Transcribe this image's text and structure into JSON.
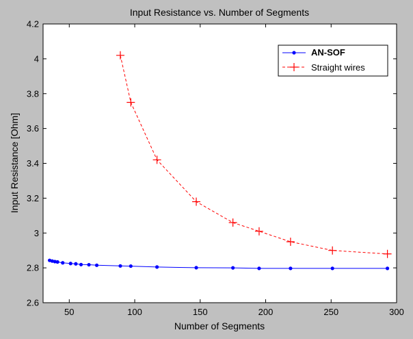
{
  "chart_data": {
    "type": "line",
    "title": "Input Resistance vs. Number of Segments",
    "xlabel": "Number of Segments",
    "ylabel": "Input Resistance [Ohm]",
    "xlim": [
      30,
      300
    ],
    "ylim": [
      2.6,
      4.2
    ],
    "xticks": [
      50,
      100,
      150,
      200,
      250,
      300
    ],
    "yticks": [
      2.6,
      2.8,
      3.0,
      3.2,
      3.4,
      3.6,
      3.8,
      4.0,
      4.2
    ],
    "xtick_labels": [
      "50",
      "100",
      "150",
      "200",
      "250",
      "300"
    ],
    "ytick_labels": [
      "2.6",
      "2.8",
      "3",
      "3.2",
      "3.4",
      "3.6",
      "3.8",
      "4",
      "4.2"
    ],
    "grid": false,
    "legend_position": "top-right",
    "series": [
      {
        "name": "AN-SOF",
        "color": "#0000ff",
        "line_style": "solid",
        "marker": "dot",
        "x": [
          35,
          37,
          39,
          41,
          45,
          51,
          55,
          59,
          65,
          71,
          89,
          97,
          117,
          147,
          175,
          195,
          219,
          251,
          293
        ],
        "y": [
          2.843,
          2.839,
          2.836,
          2.834,
          2.829,
          2.825,
          2.823,
          2.819,
          2.818,
          2.815,
          2.811,
          2.81,
          2.805,
          2.801,
          2.8,
          2.797,
          2.797,
          2.797,
          2.797
        ]
      },
      {
        "name": "Straight wires",
        "color": "#ff0000",
        "line_style": "dashed",
        "marker": "plus",
        "x": [
          89,
          97,
          117,
          147,
          175,
          195,
          219,
          251,
          293
        ],
        "y": [
          4.02,
          3.75,
          3.42,
          3.18,
          3.06,
          3.01,
          2.95,
          2.9,
          2.88
        ]
      }
    ]
  }
}
